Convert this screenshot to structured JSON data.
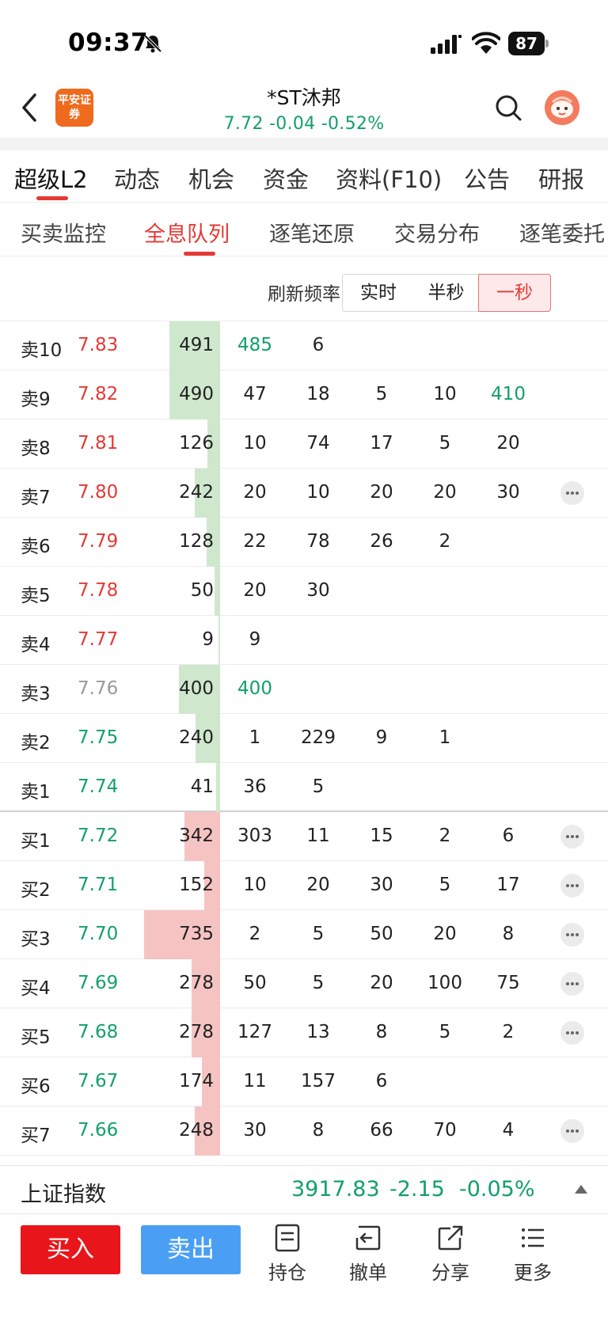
{
  "status_bar": {
    "time": "09:37",
    "battery": "87"
  },
  "header": {
    "brand_logo_text": "平安证券",
    "title": "*ST沐邦",
    "quote": "7.72 -0.04 -0.52%"
  },
  "main_tabs": [
    "超级L2",
    "动态",
    "机会",
    "资金",
    "资料(F10)",
    "公告",
    "研报"
  ],
  "sub_tabs": [
    "买卖监控",
    "全息队列",
    "逐笔还原",
    "交易分布",
    "逐笔委托"
  ],
  "refresh": {
    "label": "刷新频率",
    "options": [
      "实时",
      "半秒",
      "一秒"
    ],
    "selected": "一秒"
  },
  "colors": {
    "up": "#e53935",
    "down": "#12a06a",
    "sell_bar": "#cfe8cd",
    "buy_bar": "#f6c3c3"
  },
  "order_book": [
    {
      "label": "卖10",
      "price": "7.83",
      "dir": "up",
      "side": "sell",
      "total": 491,
      "orders": [
        485,
        6
      ],
      "more": false
    },
    {
      "label": "卖9",
      "price": "7.82",
      "dir": "up",
      "side": "sell",
      "total": 490,
      "orders": [
        47,
        18,
        5,
        10,
        410
      ],
      "more": false
    },
    {
      "label": "卖8",
      "price": "7.81",
      "dir": "up",
      "side": "sell",
      "total": 126,
      "orders": [
        10,
        74,
        17,
        5,
        20
      ],
      "more": false
    },
    {
      "label": "卖7",
      "price": "7.80",
      "dir": "up",
      "side": "sell",
      "total": 242,
      "orders": [
        20,
        10,
        20,
        20,
        30
      ],
      "more": true
    },
    {
      "label": "卖6",
      "price": "7.79",
      "dir": "up",
      "side": "sell",
      "total": 128,
      "orders": [
        22,
        78,
        26,
        2
      ],
      "more": false
    },
    {
      "label": "卖5",
      "price": "7.78",
      "dir": "up",
      "side": "sell",
      "total": 50,
      "orders": [
        20,
        30
      ],
      "more": false
    },
    {
      "label": "卖4",
      "price": "7.77",
      "dir": "up",
      "side": "sell",
      "total": 9,
      "orders": [
        9
      ],
      "more": false
    },
    {
      "label": "卖3",
      "price": "7.76",
      "dir": "flat",
      "side": "sell",
      "total": 400,
      "orders": [
        400
      ],
      "more": false
    },
    {
      "label": "卖2",
      "price": "7.75",
      "dir": "down",
      "side": "sell",
      "total": 240,
      "orders": [
        1,
        229,
        9,
        1
      ],
      "more": false
    },
    {
      "label": "卖1",
      "price": "7.74",
      "dir": "down",
      "side": "sell",
      "total": 41,
      "orders": [
        36,
        5
      ],
      "more": false
    },
    {
      "label": "买1",
      "price": "7.72",
      "dir": "down",
      "side": "buy",
      "total": 342,
      "orders": [
        303,
        11,
        15,
        2,
        6
      ],
      "more": true
    },
    {
      "label": "买2",
      "price": "7.71",
      "dir": "down",
      "side": "buy",
      "total": 152,
      "orders": [
        10,
        20,
        30,
        5,
        17
      ],
      "more": true
    },
    {
      "label": "买3",
      "price": "7.70",
      "dir": "down",
      "side": "buy",
      "total": 735,
      "orders": [
        2,
        5,
        50,
        20,
        8
      ],
      "more": true
    },
    {
      "label": "买4",
      "price": "7.69",
      "dir": "down",
      "side": "buy",
      "total": 278,
      "orders": [
        50,
        5,
        20,
        100,
        75
      ],
      "more": true
    },
    {
      "label": "买5",
      "price": "7.68",
      "dir": "down",
      "side": "buy",
      "total": 278,
      "orders": [
        127,
        13,
        8,
        5,
        2
      ],
      "more": true
    },
    {
      "label": "买6",
      "price": "7.67",
      "dir": "down",
      "side": "buy",
      "total": 174,
      "orders": [
        11,
        157,
        6
      ],
      "more": false
    },
    {
      "label": "买7",
      "price": "7.66",
      "dir": "down",
      "side": "buy",
      "total": 248,
      "orders": [
        30,
        8,
        66,
        70,
        4
      ],
      "more": true
    }
  ],
  "index_bar": {
    "name": "上证指数",
    "value": "3917.83",
    "change": "-2.15",
    "percent": "-0.05%"
  },
  "toolbar": {
    "buy_label": "买入",
    "sell_label": "卖出",
    "tools": [
      {
        "label": "持仓",
        "icon": "holdings-icon"
      },
      {
        "label": "撤单",
        "icon": "cancel-order-icon"
      },
      {
        "label": "分享",
        "icon": "share-icon"
      },
      {
        "label": "更多",
        "icon": "menu-icon"
      }
    ]
  }
}
